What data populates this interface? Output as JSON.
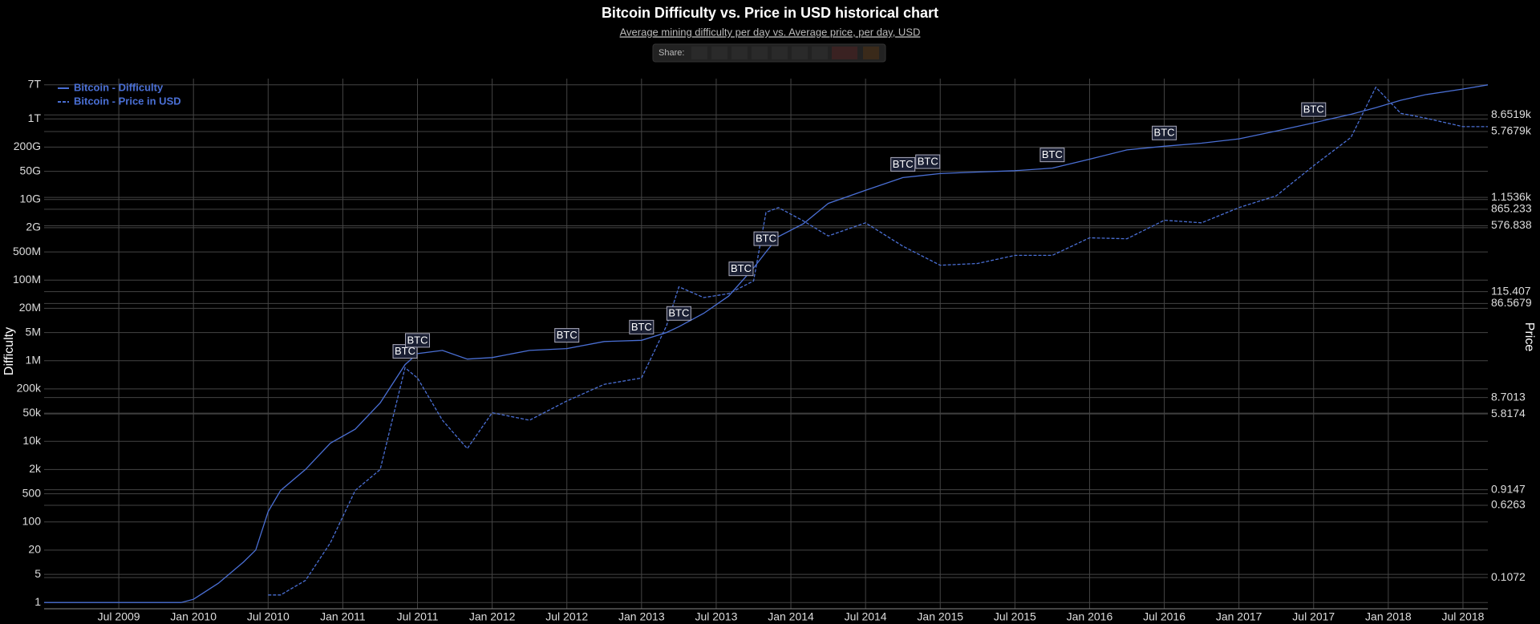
{
  "chart_data": {
    "type": "line",
    "title": "Bitcoin Difficulty vs. Price in USD historical chart",
    "subtitle": "Average mining difficulty per day vs. Average price, per day, USD",
    "share_label": "Share:",
    "ylabel": "Difficulty",
    "y2label": "Price",
    "log_scale": true,
    "grid": true,
    "legend": "top-left",
    "x": [
      "2009-01",
      "2009-07",
      "2009-12",
      "2010-01",
      "2010-03",
      "2010-05",
      "2010-06",
      "2010-07",
      "2010-08",
      "2010-10",
      "2010-12",
      "2011-02",
      "2011-04",
      "2011-06",
      "2011-07",
      "2011-09",
      "2011-11",
      "2012-01",
      "2012-04",
      "2012-07",
      "2012-10",
      "2013-01",
      "2013-03",
      "2013-04",
      "2013-06",
      "2013-08",
      "2013-10",
      "2013-11",
      "2013-12",
      "2014-02",
      "2014-04",
      "2014-07",
      "2014-10",
      "2015-01",
      "2015-04",
      "2015-07",
      "2015-10",
      "2016-01",
      "2016-04",
      "2016-07",
      "2016-10",
      "2017-01",
      "2017-04",
      "2017-07",
      "2017-10",
      "2017-12",
      "2018-02",
      "2018-04",
      "2018-07",
      "2018-09"
    ],
    "xlim": [
      "2009-01",
      "2018-09"
    ],
    "xticks": [
      {
        "value": "2009-07",
        "label": "Jul 2009"
      },
      {
        "value": "2010-01",
        "label": "Jan 2010"
      },
      {
        "value": "2010-07",
        "label": "Jul 2010"
      },
      {
        "value": "2011-01",
        "label": "Jan 2011"
      },
      {
        "value": "2011-07",
        "label": "Jul 2011"
      },
      {
        "value": "2012-01",
        "label": "Jan 2012"
      },
      {
        "value": "2012-07",
        "label": "Jul 2012"
      },
      {
        "value": "2013-01",
        "label": "Jan 2013"
      },
      {
        "value": "2013-07",
        "label": "Jul 2013"
      },
      {
        "value": "2014-01",
        "label": "Jan 2014"
      },
      {
        "value": "2014-07",
        "label": "Jul 2014"
      },
      {
        "value": "2015-01",
        "label": "Jan 2015"
      },
      {
        "value": "2015-07",
        "label": "Jul 2015"
      },
      {
        "value": "2016-01",
        "label": "Jan 2016"
      },
      {
        "value": "2016-07",
        "label": "Jul 2016"
      },
      {
        "value": "2017-01",
        "label": "Jan 2017"
      },
      {
        "value": "2017-07",
        "label": "Jul 2017"
      },
      {
        "value": "2018-01",
        "label": "Jan 2018"
      },
      {
        "value": "2018-07",
        "label": "Jul 2018"
      }
    ],
    "ylim": [
      0.7,
      10000000000000
    ],
    "yticks": [
      1,
      5,
      20,
      100,
      500,
      {
        "value": 2000,
        "label": "2k"
      },
      {
        "value": 10000,
        "label": "10k"
      },
      {
        "value": 50000,
        "label": "50k"
      },
      {
        "value": 200000,
        "label": "200k"
      },
      {
        "value": 1000000,
        "label": "1M"
      },
      {
        "value": 5000000,
        "label": "5M"
      },
      {
        "value": 20000000,
        "label": "20M"
      },
      {
        "value": 100000000,
        "label": "100M"
      },
      {
        "value": 500000000,
        "label": "500M"
      },
      {
        "value": 2000000000,
        "label": "2G"
      },
      {
        "value": 10000000000,
        "label": "10G"
      },
      {
        "value": 50000000000,
        "label": "50G"
      },
      {
        "value": 200000000000,
        "label": "200G"
      },
      {
        "value": 1000000000000,
        "label": "1T"
      },
      {
        "value": 7000000000000,
        "label": "7T"
      }
    ],
    "y2lim": [
      0.05,
      21000
    ],
    "y2ticks": [
      {
        "value": 8651.9,
        "label": "8.6519k"
      },
      {
        "value": 5767.9,
        "label": "5.7679k"
      },
      {
        "value": 1153.6,
        "label": "1.1536k"
      },
      865.233,
      576.838,
      115.407,
      86.5679,
      8.7013,
      5.8174,
      0.9147,
      0.6263,
      0.1072
    ],
    "series": [
      {
        "name": "Bitcoin - Difficulty",
        "color": "#4a6fd4",
        "dash": false,
        "values": [
          1,
          1,
          1,
          1.2,
          3,
          10,
          20,
          180,
          600,
          2000,
          9000,
          20000,
          90000,
          800000,
          1500000,
          1800000,
          1100000,
          1200000,
          1800000,
          2000000,
          3000000,
          3200000,
          5000000,
          7000000,
          15000000,
          40000000,
          200000000,
          500000000,
          1200000000,
          2500000000,
          8000000000,
          17000000000,
          35000000000,
          44000000000,
          48000000000,
          52000000000,
          60000000000,
          100000000000,
          170000000000,
          210000000000,
          250000000000,
          320000000000,
          500000000000,
          800000000000,
          1300000000000,
          1900000000000,
          2900000000000,
          4000000000000,
          5500000000000,
          7000000000000
        ]
      },
      {
        "name": "Bitcoin - Price in USD",
        "color": "#4a6fd4",
        "dash": true,
        "axis": "y2",
        "values": [
          null,
          null,
          null,
          null,
          null,
          null,
          null,
          0.07,
          0.07,
          0.1,
          0.25,
          0.9,
          1.5,
          18,
          14,
          5,
          2.5,
          6,
          5,
          8,
          12,
          14,
          50,
          130,
          100,
          110,
          150,
          800,
          900,
          650,
          450,
          620,
          350,
          220,
          230,
          280,
          280,
          430,
          420,
          660,
          620,
          900,
          1200,
          2500,
          5000,
          17000,
          9000,
          8000,
          6500,
          6500
        ]
      }
    ],
    "annotations": [
      {
        "text": "BTC",
        "x": "2011-06"
      },
      {
        "text": "BTC",
        "x": "2011-07"
      },
      {
        "text": "BTC",
        "x": "2012-07"
      },
      {
        "text": "BTC",
        "x": "2013-01"
      },
      {
        "text": "BTC",
        "x": "2013-04"
      },
      {
        "text": "BTC",
        "x": "2013-09"
      },
      {
        "text": "BTC",
        "x": "2013-11"
      },
      {
        "text": "BTC",
        "x": "2014-10"
      },
      {
        "text": "BTC",
        "x": "2014-12"
      },
      {
        "text": "BTC",
        "x": "2015-10"
      },
      {
        "text": "BTC",
        "x": "2016-07"
      },
      {
        "text": "BTC",
        "x": "2017-07"
      }
    ]
  }
}
